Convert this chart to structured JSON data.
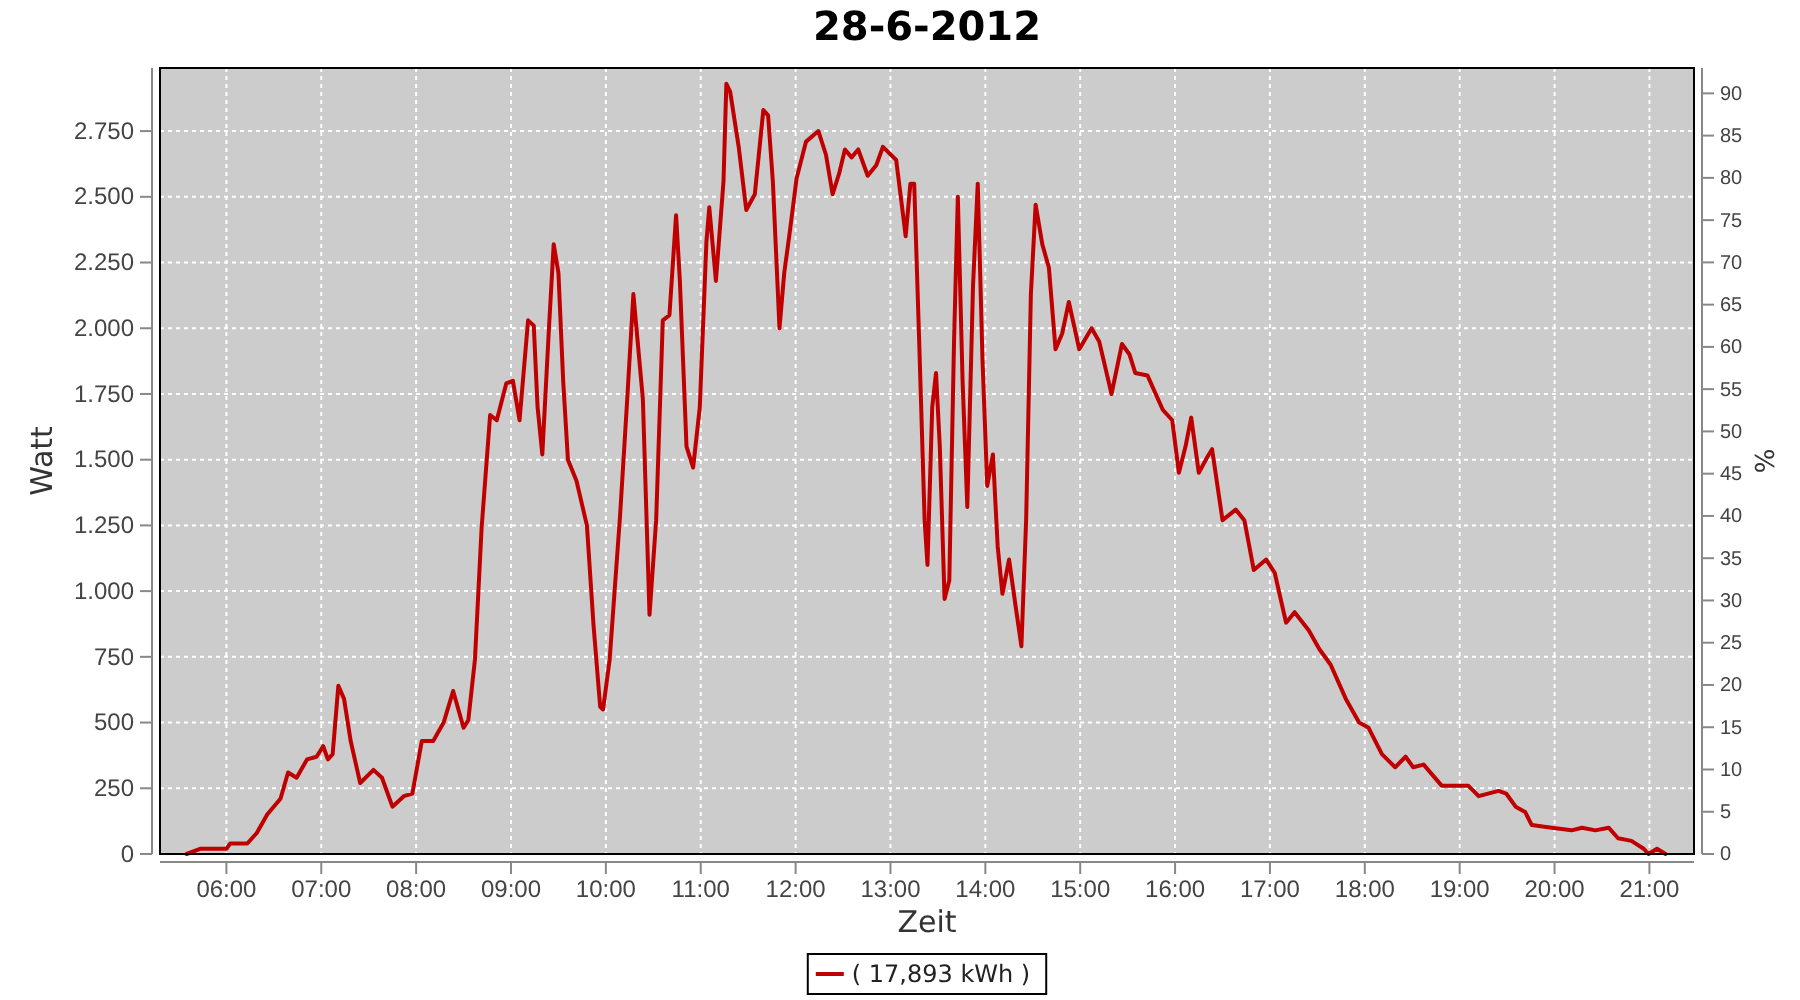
{
  "chart_data": {
    "type": "line",
    "title": "28-6-2012",
    "xlabel": "Zeit",
    "ylabel": "Watt",
    "y2label": "%",
    "xlim": [
      5.3,
      21.47
    ],
    "xticks": [
      {
        "value": 6,
        "label": "06:00"
      },
      {
        "value": 7,
        "label": "07:00"
      },
      {
        "value": 8,
        "label": "08:00"
      },
      {
        "value": 9,
        "label": "09:00"
      },
      {
        "value": 10,
        "label": "10:00"
      },
      {
        "value": 11,
        "label": "11:00"
      },
      {
        "value": 12,
        "label": "12:00"
      },
      {
        "value": 13,
        "label": "13:00"
      },
      {
        "value": 14,
        "label": "14:00"
      },
      {
        "value": 15,
        "label": "15:00"
      },
      {
        "value": 16,
        "label": "16:00"
      },
      {
        "value": 17,
        "label": "17:00"
      },
      {
        "value": 18,
        "label": "18:00"
      },
      {
        "value": 19,
        "label": "19:00"
      },
      {
        "value": 20,
        "label": "20:00"
      },
      {
        "value": 21,
        "label": "21:00"
      }
    ],
    "ylim": [
      0,
      2990
    ],
    "yticks": [
      0,
      250,
      500,
      750,
      {
        "value": 1000,
        "label": "1.000"
      },
      {
        "value": 1250,
        "label": "1.250"
      },
      {
        "value": 1500,
        "label": "1.500"
      },
      {
        "value": 1750,
        "label": "1.750"
      },
      {
        "value": 2000,
        "label": "2.000"
      },
      {
        "value": 2250,
        "label": "2.250"
      },
      {
        "value": 2500,
        "label": "2.500"
      },
      {
        "value": 2750,
        "label": "2.750"
      }
    ],
    "y2lim": [
      0,
      93
    ],
    "y2ticks": [
      0,
      5,
      10,
      15,
      20,
      25,
      30,
      35,
      40,
      45,
      50,
      55,
      60,
      65,
      70,
      75,
      80,
      85,
      90
    ],
    "grid": true,
    "legend": "bottom",
    "marker": "none",
    "line_style": "solid",
    "series": [
      {
        "name": "( 17,893 kWh )",
        "color": "#c00000",
        "x": [
          5.58,
          5.73,
          6.0,
          6.04,
          6.22,
          6.32,
          6.43,
          6.57,
          6.65,
          6.74,
          6.85,
          6.95,
          7.02,
          7.07,
          7.12,
          7.18,
          7.24,
          7.31,
          7.41,
          7.55,
          7.64,
          7.75,
          7.87,
          7.96,
          8.06,
          8.18,
          8.29,
          8.39,
          8.5,
          8.55,
          8.62,
          8.69,
          8.78,
          8.85,
          8.95,
          9.02,
          9.09,
          9.18,
          9.24,
          9.28,
          9.33,
          9.4,
          9.45,
          9.5,
          9.55,
          9.6,
          9.69,
          9.8,
          9.87,
          9.94,
          9.97,
          10.04,
          10.15,
          10.22,
          10.29,
          10.39,
          10.46,
          10.53,
          10.6,
          10.67,
          10.74,
          10.78,
          10.85,
          10.92,
          10.99,
          11.06,
          11.09,
          11.16,
          11.24,
          11.27,
          11.31,
          11.4,
          11.48,
          11.57,
          11.66,
          11.71,
          11.76,
          11.83,
          11.88,
          11.94,
          12.01,
          12.11,
          12.24,
          12.32,
          12.39,
          12.46,
          12.52,
          12.59,
          12.66,
          12.76,
          12.85,
          12.92,
          13.06,
          13.14,
          13.16,
          13.21,
          13.25,
          13.3,
          13.36,
          13.39,
          13.44,
          13.48,
          13.52,
          13.57,
          13.62,
          13.67,
          13.71,
          13.76,
          13.81,
          13.87,
          13.92,
          13.97,
          14.02,
          14.08,
          14.13,
          14.18,
          14.25,
          14.32,
          14.38,
          14.43,
          14.48,
          14.53,
          14.6,
          14.67,
          14.74,
          14.81,
          14.88,
          14.99,
          15.12,
          15.2,
          15.33,
          15.44,
          15.52,
          15.58,
          15.71,
          15.87,
          15.97,
          16.04,
          16.11,
          16.17,
          16.25,
          16.34,
          16.39,
          16.5,
          16.64,
          16.73,
          16.83,
          16.96,
          17.05,
          17.17,
          17.26,
          17.41,
          17.52,
          17.64,
          17.8,
          17.94,
          18.04,
          18.18,
          18.32,
          18.43,
          18.51,
          18.62,
          18.81,
          18.99,
          19.09,
          19.2,
          19.41,
          19.49,
          19.59,
          19.69,
          19.76,
          19.97,
          20.18,
          20.29,
          20.43,
          20.57,
          20.67,
          20.81,
          20.94,
          20.99,
          21.08,
          21.17
        ],
        "values": [
          0,
          20,
          20,
          40,
          40,
          80,
          150,
          210,
          310,
          290,
          360,
          370,
          410,
          360,
          380,
          640,
          590,
          430,
          270,
          320,
          290,
          180,
          220,
          230,
          430,
          430,
          500,
          620,
          480,
          510,
          740,
          1240,
          1670,
          1650,
          1790,
          1800,
          1650,
          2030,
          2010,
          1700,
          1520,
          2000,
          2320,
          2210,
          1800,
          1500,
          1420,
          1250,
          870,
          560,
          550,
          740,
          1290,
          1700,
          2130,
          1730,
          910,
          1270,
          2030,
          2050,
          2430,
          2180,
          1550,
          1470,
          1700,
          2330,
          2460,
          2180,
          2560,
          2930,
          2900,
          2690,
          2450,
          2510,
          2830,
          2810,
          2560,
          2000,
          2210,
          2370,
          2570,
          2710,
          2750,
          2660,
          2510,
          2590,
          2680,
          2650,
          2680,
          2580,
          2620,
          2690,
          2640,
          2410,
          2350,
          2550,
          2550,
          1980,
          1270,
          1100,
          1700,
          1830,
          1550,
          970,
          1040,
          1950,
          2500,
          1800,
          1320,
          2160,
          2550,
          1880,
          1400,
          1520,
          1170,
          990,
          1120,
          940,
          790,
          1270,
          2130,
          2470,
          2320,
          2230,
          1920,
          1980,
          2100,
          1920,
          2000,
          1950,
          1750,
          1940,
          1900,
          1830,
          1820,
          1690,
          1650,
          1450,
          1550,
          1660,
          1450,
          1510,
          1540,
          1270,
          1310,
          1270,
          1080,
          1120,
          1070,
          880,
          920,
          850,
          780,
          720,
          590,
          500,
          480,
          380,
          330,
          370,
          330,
          340,
          260,
          260,
          260,
          220,
          240,
          230,
          180,
          160,
          110,
          100,
          90,
          100,
          90,
          100,
          60,
          50,
          20,
          0,
          20,
          0
        ]
      }
    ]
  }
}
